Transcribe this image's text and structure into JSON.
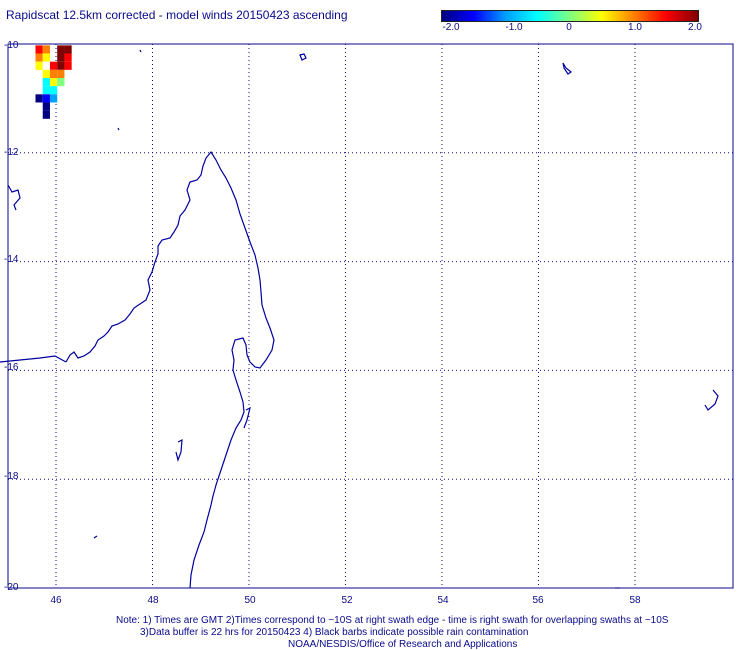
{
  "title": "Rapidscat 12.5km corrected - model winds 20150423 ascending",
  "colorbar": {
    "colors": [
      "#000080",
      "#0000ff",
      "#00a0ff",
      "#00ffff",
      "#80ff80",
      "#ffff00",
      "#ff8000",
      "#ff0000",
      "#800000"
    ],
    "labels": [
      "-2.0",
      "-1.0",
      "0",
      "1.0",
      "2.0"
    ]
  },
  "map": {
    "x_ticks": [
      "46",
      "48",
      "50",
      "52",
      "54",
      "56",
      "58"
    ],
    "y_ticks": [
      "-10",
      "-12",
      "-14",
      "-16",
      "-18",
      "-20"
    ],
    "coastline_color": "#0000a0",
    "grid": "dotted",
    "lon_range": [
      45.5,
      59.7
    ],
    "lat_range": [
      -20,
      -10
    ]
  },
  "swath_cells": [
    {
      "lon": 46.1,
      "lat": -10.1,
      "value": 2.0
    },
    {
      "lon": 46.25,
      "lat": -10.1,
      "value": 2.0
    },
    {
      "lon": 45.65,
      "lat": -10.1,
      "value": 1.5
    },
    {
      "lon": 45.8,
      "lat": -10.1,
      "value": 1.0
    },
    {
      "lon": 45.65,
      "lat": -10.25,
      "value": 0.8
    },
    {
      "lon": 45.8,
      "lat": -10.25,
      "value": 0.6
    },
    {
      "lon": 46.1,
      "lat": -10.25,
      "value": 1.8
    },
    {
      "lon": 46.25,
      "lat": -10.25,
      "value": 1.6
    },
    {
      "lon": 45.65,
      "lat": -10.4,
      "value": 0.5
    },
    {
      "lon": 45.95,
      "lat": -10.4,
      "value": 1.5
    },
    {
      "lon": 46.1,
      "lat": -10.4,
      "value": 1.8
    },
    {
      "lon": 46.25,
      "lat": -10.4,
      "value": 1.4
    },
    {
      "lon": 45.8,
      "lat": -10.55,
      "value": 0.3
    },
    {
      "lon": 45.95,
      "lat": -10.55,
      "value": 1.0
    },
    {
      "lon": 46.1,
      "lat": -10.55,
      "value": 1.2
    },
    {
      "lon": 45.8,
      "lat": -10.7,
      "value": -0.4
    },
    {
      "lon": 45.95,
      "lat": -10.7,
      "value": 0.4
    },
    {
      "lon": 46.1,
      "lat": -10.7,
      "value": 0.2
    },
    {
      "lon": 45.95,
      "lat": -10.85,
      "value": -0.3
    },
    {
      "lon": 45.8,
      "lat": -10.85,
      "value": -0.6
    },
    {
      "lon": 45.65,
      "lat": -11.0,
      "value": -1.8
    },
    {
      "lon": 45.8,
      "lat": -11.0,
      "value": -1.6
    },
    {
      "lon": 45.95,
      "lat": -11.0,
      "value": -0.8
    },
    {
      "lon": 45.8,
      "lat": -11.15,
      "value": -1.9
    },
    {
      "lon": 45.8,
      "lat": -11.3,
      "value": -2.0
    }
  ],
  "notes": {
    "line1": "Note: 1) Times are GMT 2)Times correspond to ~10S at right swath edge - time is right swath for overlapping swaths at ~10S",
    "line2": "3)Data buffer is 22 hrs for 20150423 4) Black barbs indicate possible rain contamination",
    "line3": "NOAA/NESDIS/Office of Research and Applications"
  }
}
